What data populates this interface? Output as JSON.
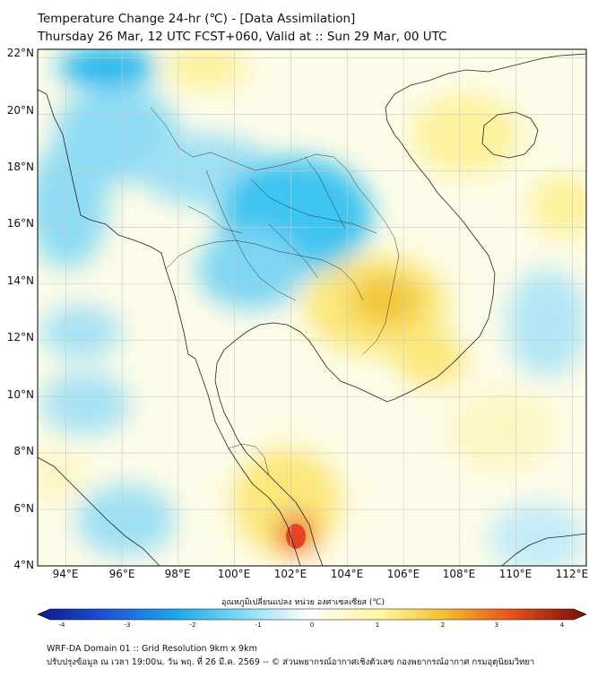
{
  "header": {
    "title_line1": "Temperature Change 24-hr (℃) - [Data Assimilation]",
    "title_line2": "Thursday 26 Mar, 12 UTC FCST+060, Valid at :: Sun 29 Mar, 00 UTC"
  },
  "map": {
    "lat_labels": [
      "22°N",
      "20°N",
      "18°N",
      "16°N",
      "14°N",
      "12°N",
      "10°N",
      "8°N",
      "6°N",
      "4°N"
    ],
    "lon_labels": [
      "94°E",
      "96°E",
      "98°E",
      "100°E",
      "102°E",
      "104°E",
      "106°E",
      "108°E",
      "110°E",
      "112°E"
    ],
    "extent": {
      "lon_min": 93,
      "lon_max": 112.5,
      "lat_min": 4,
      "lat_max": 22.3
    },
    "field_colors": {
      "cold_strong": "#00aef0",
      "cold": "#7fd8f4",
      "neutral": "#ffffff",
      "warm": "#fff59a",
      "warm_strong": "#f2c02c",
      "hot": "#e0361a"
    }
  },
  "colorbar": {
    "title": "อุณหภูมิเปลี่ยนแปลง หน่วย องศาเซลเซียส (℃)",
    "ticks": [
      "-4",
      "-3",
      "-2",
      "-1",
      "0",
      "1",
      "2",
      "3",
      "4"
    ],
    "range": [
      -4,
      4
    ]
  },
  "footer": {
    "line1": "WRF-DA Domain 01 :: Grid Resolution 9km x 9km",
    "line2": "ปรับปรุงข้อมูล ณ เวลา 19:00น. วัน พฤ. ที่ 26 มี.ค. 2569 -- © ส่วนพยากรณ์อากาศเชิงตัวเลข กองพยากรณ์อากาศ กรมอุตุนิยมวิทยา"
  }
}
